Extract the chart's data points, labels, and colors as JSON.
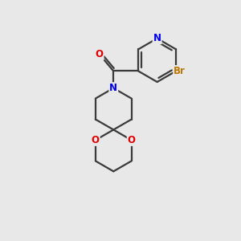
{
  "background_color": "#e8e8e8",
  "bond_color": "#3a3a3a",
  "bond_width": 1.6,
  "atom_colors": {
    "N_pyridine": "#0000ee",
    "N_amine": "#0000ee",
    "O": "#dd0000",
    "Br": "#bb7700",
    "C": "#3a3a3a"
  },
  "figsize": [
    3.0,
    3.0
  ],
  "dpi": 100
}
